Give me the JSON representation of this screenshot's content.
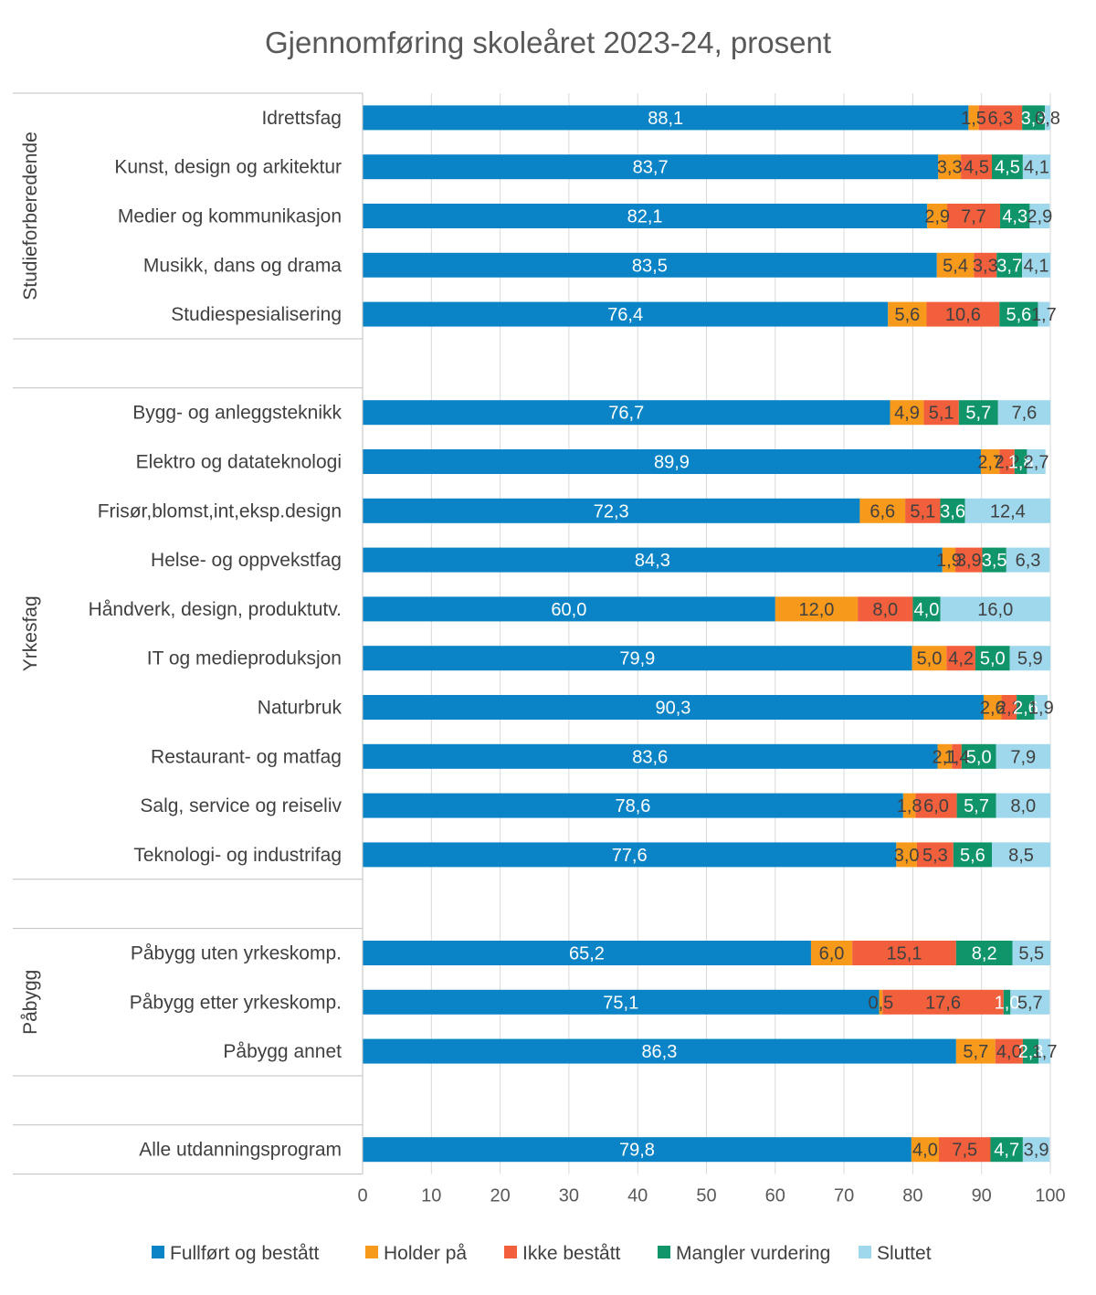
{
  "chart_data": {
    "type": "bar",
    "orientation": "horizontal",
    "stacked": true,
    "title": "Gjennomføring skoleåret 2023-24, prosent",
    "xlim": [
      0,
      100
    ],
    "x_ticks": [
      "0",
      "10",
      "20",
      "30",
      "40",
      "50",
      "60",
      "70",
      "80",
      "90",
      "100"
    ],
    "grid": "vertical",
    "legend_position": "bottom",
    "series": [
      {
        "name": "Fullført og bestått",
        "color": "#0a84c6",
        "label_color": "#ffffff"
      },
      {
        "name": "Holder på",
        "color": "#f79a1c",
        "label_color": "#404040"
      },
      {
        "name": "Ikke bestått",
        "color": "#f15f3c",
        "label_color": "#404040"
      },
      {
        "name": "Mangler vurdering",
        "color": "#10956a",
        "label_color": "#ffffff"
      },
      {
        "name": "Sluttet",
        "color": "#9fd8ec",
        "label_color": "#404040"
      }
    ],
    "groups": [
      {
        "name": "Studieforberedende",
        "categories": [
          {
            "label": "Idrettsfag",
            "values": [
              88.1,
              1.5,
              6.3,
              3.3,
              0.8
            ],
            "labels": [
              "88,1",
              "1,5",
              "6,3",
              "3,3",
              "0,8"
            ]
          },
          {
            "label": "Kunst, design og arkitektur",
            "values": [
              83.7,
              3.3,
              4.5,
              4.5,
              4.1
            ],
            "labels": [
              "83,7",
              "3,3",
              "4,5",
              "4,5",
              "4,1"
            ]
          },
          {
            "label": "Medier og kommunikasjon",
            "values": [
              82.1,
              2.9,
              7.7,
              4.3,
              2.9
            ],
            "labels": [
              "82,1",
              "2,9",
              "7,7",
              "4,3",
              "2,9"
            ]
          },
          {
            "label": "Musikk, dans og drama",
            "values": [
              83.5,
              5.4,
              3.3,
              3.7,
              4.1
            ],
            "labels": [
              "83,5",
              "5,4",
              "3,3",
              "3,7",
              "4,1"
            ]
          },
          {
            "label": "Studiespesialisering",
            "values": [
              76.4,
              5.6,
              10.6,
              5.6,
              1.7
            ],
            "labels": [
              "76,4",
              "5,6",
              "10,6",
              "5,6",
              "1,7"
            ]
          }
        ]
      },
      {
        "name": "Yrkesfag",
        "categories": [
          {
            "label": "Bygg- og anleggsteknikk",
            "values": [
              76.7,
              4.9,
              5.1,
              5.7,
              7.6
            ],
            "labels": [
              "76,7",
              "4,9",
              "5,1",
              "5,7",
              "7,6"
            ]
          },
          {
            "label": "Elektro og datateknologi",
            "values": [
              89.9,
              2.7,
              2.2,
              1.8,
              2.7
            ],
            "labels": [
              "89,9",
              "2,7",
              "2,2",
              "1,8",
              "2,7"
            ]
          },
          {
            "label": "Frisør,blomst,int,eksp.design",
            "values": [
              72.3,
              6.6,
              5.1,
              3.6,
              12.4
            ],
            "labels": [
              "72,3",
              "6,6",
              "5,1",
              "3,6",
              "12,4"
            ]
          },
          {
            "label": "Helse- og oppvekstfag",
            "values": [
              84.3,
              1.9,
              3.9,
              3.5,
              6.3
            ],
            "labels": [
              "84,3",
              "1,9",
              "3,9",
              "3,5",
              "6,3"
            ]
          },
          {
            "label": "Håndverk, design, produktutv.",
            "values": [
              60.0,
              12.0,
              8.0,
              4.0,
              16.0
            ],
            "labels": [
              "60,0",
              "12,0",
              "8,0",
              "4,0",
              "16,0"
            ]
          },
          {
            "label": "IT og medieproduksjon",
            "values": [
              79.9,
              5.0,
              4.2,
              5.0,
              5.9
            ],
            "labels": [
              "79,9",
              "5,0",
              "4,2",
              "5,0",
              "5,9"
            ]
          },
          {
            "label": "Naturbruk",
            "values": [
              90.3,
              2.6,
              2.2,
              2.6,
              1.9
            ],
            "labels": [
              "90,3",
              "2,6",
              "2,2",
              "2,6",
              "1,9"
            ]
          },
          {
            "label": "Restaurant- og matfag",
            "values": [
              83.6,
              2.1,
              1.4,
              5.0,
              7.9
            ],
            "labels": [
              "83,6",
              "2,1",
              "1,4",
              "5,0",
              "7,9"
            ]
          },
          {
            "label": "Salg, service og reiseliv",
            "values": [
              78.6,
              1.8,
              6.0,
              5.7,
              8.0
            ],
            "labels": [
              "78,6",
              "1,8",
              "6,0",
              "5,7",
              "8,0"
            ]
          },
          {
            "label": "Teknologi- og industrifag",
            "values": [
              77.6,
              3.0,
              5.3,
              5.6,
              8.5
            ],
            "labels": [
              "77,6",
              "3,0",
              "5,3",
              "5,6",
              "8,5"
            ]
          }
        ]
      },
      {
        "name": "Påbygg",
        "categories": [
          {
            "label": "Påbygg uten yrkeskomp.",
            "values": [
              65.2,
              6.0,
              15.1,
              8.2,
              5.5
            ],
            "labels": [
              "65,2",
              "6,0",
              "15,1",
              "8,2",
              "5,5"
            ]
          },
          {
            "label": "Påbygg etter yrkeskomp.",
            "values": [
              75.1,
              0.5,
              17.6,
              1.0,
              5.7
            ],
            "labels": [
              "75,1",
              "0,5",
              "17,6",
              "1,0",
              "5,7"
            ]
          },
          {
            "label": "Påbygg annet",
            "values": [
              86.3,
              5.7,
              4.0,
              2.3,
              1.7
            ],
            "labels": [
              "86,3",
              "5,7",
              "4,0",
              "2,3",
              "1,7"
            ]
          }
        ]
      },
      {
        "name": "",
        "categories": [
          {
            "label": "Alle utdanningsprogram",
            "values": [
              79.8,
              4.0,
              7.5,
              4.7,
              3.9
            ],
            "labels": [
              "79,8",
              "4,0",
              "7,5",
              "4,7",
              "3,9"
            ]
          }
        ]
      }
    ]
  }
}
